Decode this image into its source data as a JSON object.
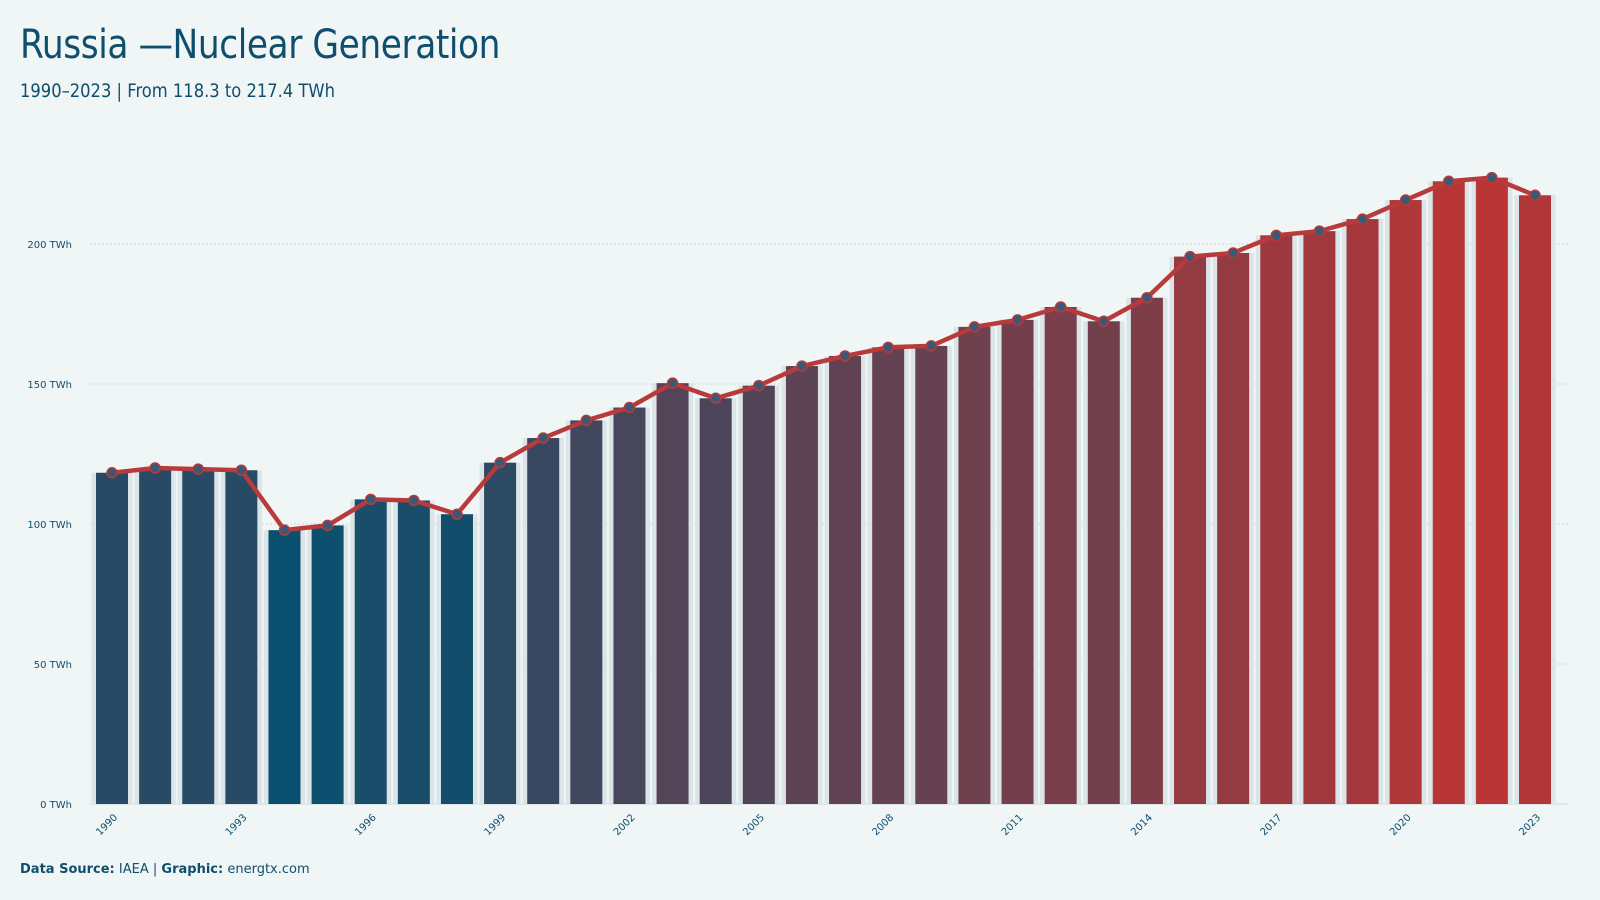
{
  "chart_data": {
    "type": "bar",
    "title": "Russia —Nuclear Generation",
    "subtitle": "1990–2023 | From 118.3 to 217.4 TWh",
    "unit": "TWh",
    "x": [
      1990,
      1991,
      1992,
      1993,
      1994,
      1995,
      1996,
      1997,
      1998,
      1999,
      2000,
      2001,
      2002,
      2003,
      2004,
      2005,
      2006,
      2007,
      2008,
      2009,
      2010,
      2011,
      2012,
      2013,
      2014,
      2015,
      2016,
      2017,
      2018,
      2019,
      2020,
      2021,
      2022,
      2023
    ],
    "values": [
      118.3,
      120.0,
      119.6,
      119.2,
      97.8,
      99.5,
      108.8,
      108.4,
      103.5,
      121.9,
      130.7,
      137.0,
      141.6,
      150.3,
      144.9,
      149.4,
      156.4,
      160.0,
      163.1,
      163.6,
      170.4,
      172.9,
      177.5,
      172.4,
      180.8,
      195.5,
      196.8,
      203.1,
      204.6,
      208.9,
      215.7,
      222.4,
      223.7,
      217.4
    ],
    "y_ticks": [
      0,
      50,
      100,
      150,
      200
    ],
    "y_tick_labels": [
      "0 TWh",
      "50 TWh",
      "100 TWh",
      "150 TWh",
      "200 TWh"
    ],
    "x_tick_labels": [
      "1990",
      "1993",
      "1996",
      "1999",
      "2002",
      "2005",
      "2008",
      "2011",
      "2014",
      "2017",
      "2020",
      "2023"
    ],
    "ylim": [
      0,
      230
    ],
    "grid": true,
    "line_overlay": true,
    "colors": {
      "low": "#0a4f6f",
      "high": "#ba3535",
      "line": "#b83a3a",
      "point": "#3c5875",
      "grid": "#cfd8dc"
    }
  },
  "footer": {
    "source_label": "Data Source:",
    "source_value": "IAEA",
    "separator": "|",
    "graphic_label": "Graphic:",
    "graphic_value": "energtx.com"
  }
}
